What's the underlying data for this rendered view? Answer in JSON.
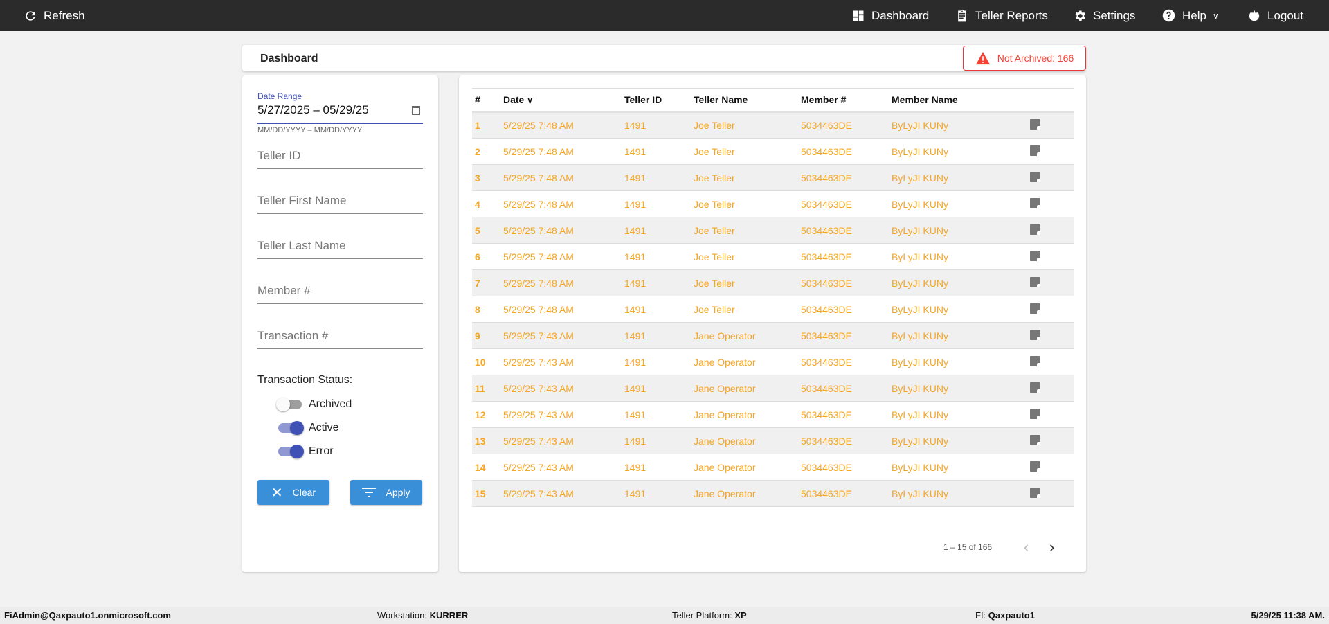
{
  "topbar": {
    "refresh": "Refresh",
    "dashboard": "Dashboard",
    "teller_reports": "Teller Reports",
    "settings": "Settings",
    "help": "Help",
    "logout": "Logout"
  },
  "header": {
    "title": "Dashboard",
    "badge": "Not Archived: 166"
  },
  "filters": {
    "date_label": "Date Range",
    "date_value": "5/27/2025 – 05/29/25",
    "date_hint": "MM/DD/YYYY – MM/DD/YYYY",
    "teller_id": "Teller ID",
    "first_name": "Teller First Name",
    "last_name": "Teller Last Name",
    "member": "Member #",
    "transaction": "Transaction #",
    "status_label": "Transaction Status:",
    "toggles": [
      {
        "label": "Archived",
        "on": false
      },
      {
        "label": "Active",
        "on": true
      },
      {
        "label": "Error",
        "on": true
      }
    ],
    "clear": "Clear",
    "apply": "Apply"
  },
  "table": {
    "headers": [
      "#",
      "Date",
      "Teller ID",
      "Teller Name",
      "Member #",
      "Member Name"
    ],
    "rows": [
      [
        "1",
        "5/29/25 7:48 AM",
        "1491",
        "Joe Teller",
        "5034463DE",
        "ByLyJI KUNy"
      ],
      [
        "2",
        "5/29/25 7:48 AM",
        "1491",
        "Joe Teller",
        "5034463DE",
        "ByLyJI KUNy"
      ],
      [
        "3",
        "5/29/25 7:48 AM",
        "1491",
        "Joe Teller",
        "5034463DE",
        "ByLyJI KUNy"
      ],
      [
        "4",
        "5/29/25 7:48 AM",
        "1491",
        "Joe Teller",
        "5034463DE",
        "ByLyJI KUNy"
      ],
      [
        "5",
        "5/29/25 7:48 AM",
        "1491",
        "Joe Teller",
        "5034463DE",
        "ByLyJI KUNy"
      ],
      [
        "6",
        "5/29/25 7:48 AM",
        "1491",
        "Joe Teller",
        "5034463DE",
        "ByLyJI KUNy"
      ],
      [
        "7",
        "5/29/25 7:48 AM",
        "1491",
        "Joe Teller",
        "5034463DE",
        "ByLyJI KUNy"
      ],
      [
        "8",
        "5/29/25 7:48 AM",
        "1491",
        "Joe Teller",
        "5034463DE",
        "ByLyJI KUNy"
      ],
      [
        "9",
        "5/29/25 7:43 AM",
        "1491",
        "Jane Operator",
        "5034463DE",
        "ByLyJI KUNy"
      ],
      [
        "10",
        "5/29/25 7:43 AM",
        "1491",
        "Jane Operator",
        "5034463DE",
        "ByLyJI KUNy"
      ],
      [
        "11",
        "5/29/25 7:43 AM",
        "1491",
        "Jane Operator",
        "5034463DE",
        "ByLyJI KUNy"
      ],
      [
        "12",
        "5/29/25 7:43 AM",
        "1491",
        "Jane Operator",
        "5034463DE",
        "ByLyJI KUNy"
      ],
      [
        "13",
        "5/29/25 7:43 AM",
        "1491",
        "Jane Operator",
        "5034463DE",
        "ByLyJI KUNy"
      ],
      [
        "14",
        "5/29/25 7:43 AM",
        "1491",
        "Jane Operator",
        "5034463DE",
        "ByLyJI KUNy"
      ],
      [
        "15",
        "5/29/25 7:43 AM",
        "1491",
        "Jane Operator",
        "5034463DE",
        "ByLyJI KUNy"
      ]
    ],
    "pagination": "1 – 15 of 166"
  },
  "footer": {
    "user": "FiAdmin@Qaxpauto1.onmicrosoft.com",
    "workstation_label": "Workstation:",
    "workstation": "KURRER",
    "platform_label": "Teller Platform:",
    "platform": "XP",
    "fi_label": "FI:",
    "fi": "Qaxpauto1",
    "datetime": "5/29/25 11:38 AM."
  }
}
